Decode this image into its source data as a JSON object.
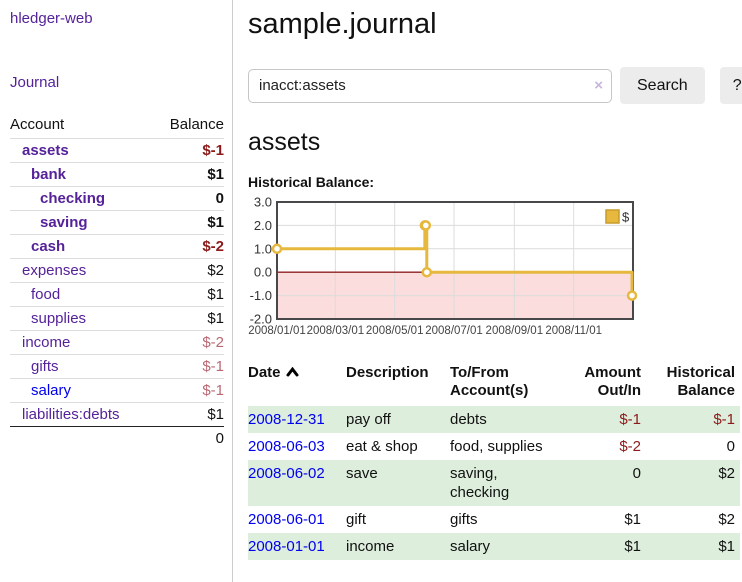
{
  "app_title": "hledger-web",
  "colors": {
    "link_purple": "#552299",
    "link_blue": "#0000ee",
    "negative_strong": "#8c1a1a",
    "negative_muted": "#b96973",
    "row_stripe_green": "#ddeedd",
    "series_gold": "#e6b83e",
    "chart_negative_fill": "#fbdddd",
    "chart_zero_line": "#8f1f1f"
  },
  "sidebar": {
    "journal_label": "Journal",
    "accounts": {
      "headers": {
        "account": "Account",
        "balance": "Balance"
      },
      "rows": [
        {
          "name": "assets",
          "balance": "$-1",
          "level": 1,
          "focus": true,
          "link_color": "purple",
          "balance_tone": "neg-strong"
        },
        {
          "name": "bank",
          "balance": "$1",
          "level": 2,
          "focus": true,
          "link_color": "purple",
          "balance_tone": ""
        },
        {
          "name": "checking",
          "balance": "0",
          "level": 3,
          "focus": true,
          "link_color": "purple",
          "balance_tone": ""
        },
        {
          "name": "saving",
          "balance": "$1",
          "level": 3,
          "focus": true,
          "link_color": "purple",
          "balance_tone": ""
        },
        {
          "name": "cash",
          "balance": "$-2",
          "level": 2,
          "focus": true,
          "link_color": "purple",
          "balance_tone": "neg-strong"
        },
        {
          "name": "expenses",
          "balance": "$2",
          "level": 1,
          "focus": false,
          "link_color": "purple",
          "balance_tone": ""
        },
        {
          "name": "food",
          "balance": "$1",
          "level": 2,
          "focus": false,
          "link_color": "purple",
          "balance_tone": ""
        },
        {
          "name": "supplies",
          "balance": "$1",
          "level": 2,
          "focus": false,
          "link_color": "purple",
          "balance_tone": ""
        },
        {
          "name": "income",
          "balance": "$-2",
          "level": 1,
          "focus": false,
          "link_color": "purple",
          "balance_tone": "neg-muted"
        },
        {
          "name": "gifts",
          "balance": "$-1",
          "level": 2,
          "focus": false,
          "link_color": "purple",
          "balance_tone": "neg-muted"
        },
        {
          "name": "salary",
          "balance": "$-1",
          "level": 2,
          "focus": false,
          "link_color": "blue",
          "balance_tone": "neg-muted"
        },
        {
          "name": "liabilities:debts",
          "balance": "$1",
          "level": 1,
          "focus": false,
          "link_color": "purple",
          "balance_tone": ""
        }
      ],
      "total": "0"
    }
  },
  "main": {
    "title": "sample.journal",
    "search": {
      "value": "inacct:assets",
      "clear_icon": "×",
      "search_button": "Search",
      "help_button": "?"
    },
    "section_heading": "assets",
    "chart_title": "Historical Balance:"
  },
  "chart_data": {
    "type": "line",
    "style": "step",
    "title": "Historical Balance",
    "grid": true,
    "legend_position": "top-right",
    "legend": [
      {
        "label": "$",
        "color": "#e6b83e"
      }
    ],
    "x": [
      "2008-01-01",
      "2008-06-01",
      "2008-06-02",
      "2008-06-03",
      "2008-12-31"
    ],
    "series": [
      {
        "name": "$",
        "values": [
          1,
          2,
          2,
          0,
          -1
        ]
      }
    ],
    "x_range": [
      "2008-01-01",
      "2009-01-01"
    ],
    "ylim": [
      -2.0,
      3.0
    ],
    "yticks": [
      3.0,
      2.0,
      1.0,
      0.0,
      -1.0,
      -2.0
    ],
    "xtick_labels": [
      "2008/01/01",
      "2008/03/01",
      "2008/05/01",
      "2008/07/01",
      "2008/09/01",
      "2008/11/01"
    ]
  },
  "register": {
    "sort": {
      "column": "Date",
      "direction": "ascending"
    },
    "headers": [
      {
        "lines": "Date",
        "align": "left"
      },
      {
        "lines": "Description",
        "align": "left"
      },
      {
        "lines": "To/From\nAccount(s)",
        "align": "left"
      },
      {
        "lines": "Amount\nOut/In",
        "align": "right"
      },
      {
        "lines": "Historical\nBalance",
        "align": "right"
      }
    ],
    "rows": [
      {
        "date": "2008-12-31",
        "description": "pay off",
        "accounts": "debts",
        "amount": "$-1",
        "balance": "$-1"
      },
      {
        "date": "2008-06-03",
        "description": "eat & shop",
        "accounts": "food, supplies",
        "amount": "$-2",
        "balance": "0"
      },
      {
        "date": "2008-06-02",
        "description": "save",
        "accounts": "saving, checking",
        "amount": "0",
        "balance": "$2"
      },
      {
        "date": "2008-06-01",
        "description": "gift",
        "accounts": "gifts",
        "amount": "$1",
        "balance": "$2"
      },
      {
        "date": "2008-01-01",
        "description": "income",
        "accounts": "salary",
        "amount": "$1",
        "balance": "$1"
      }
    ]
  }
}
